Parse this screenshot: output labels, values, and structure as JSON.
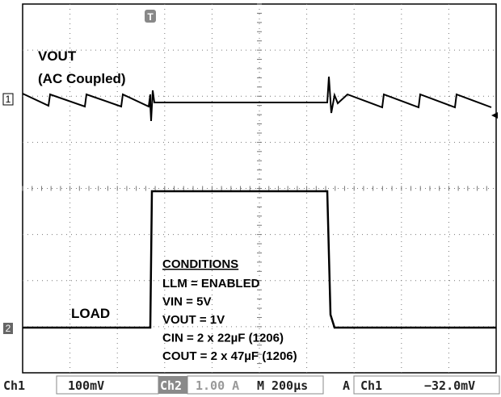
{
  "labels": {
    "vout": "VOUT",
    "coupling": "(AC Coupled)",
    "load": "LOAD"
  },
  "conditions": {
    "title": "CONDITIONS",
    "lines": [
      "LLM = ENABLED",
      "VIN = 5V",
      "VOUT = 1V",
      "CIN = 2 x 22µF (1206)",
      "COUT = 2 x 47µF (1206)"
    ]
  },
  "markers": {
    "ch1": "1",
    "ch2": "2",
    "trigger": "T"
  },
  "status": {
    "ch1": "Ch1",
    "ch1_scale": "100mV",
    "ch2": "Ch2",
    "ch2_scale": "1.00 A",
    "time_label": "M",
    "time_scale": "200µs",
    "trigger_mode": "A",
    "trigger_source": "Ch1",
    "trigger_level": "−32.0mV"
  }
}
